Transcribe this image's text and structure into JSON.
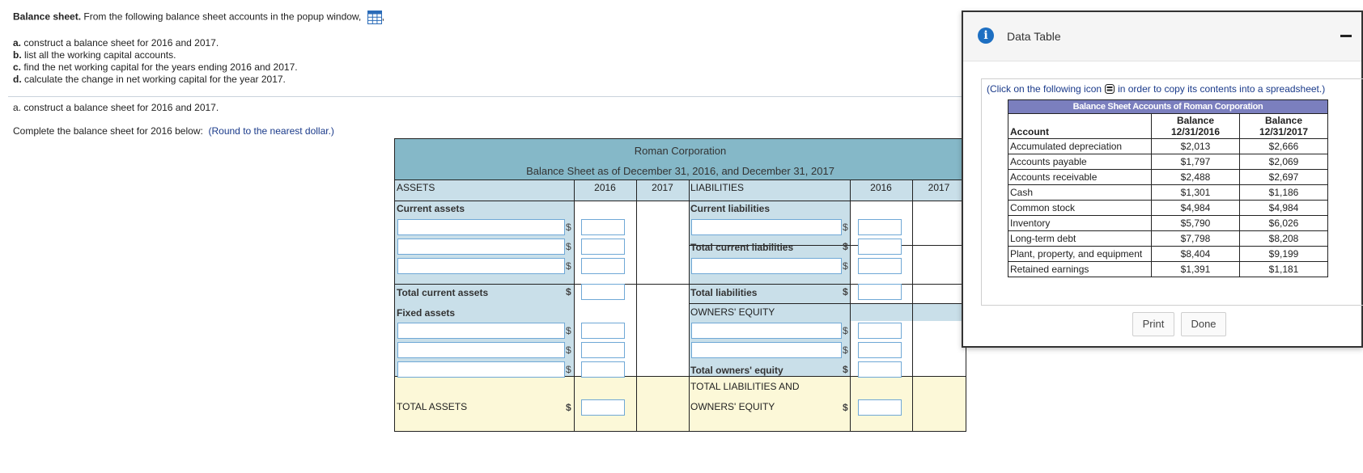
{
  "question": {
    "title_bold": "Balance sheet.",
    "title_rest": " From the following balance sheet accounts in the popup window,",
    "title_comma": ",",
    "parts": [
      {
        "letter": "a.",
        "text": " construct a balance sheet for 2016 and 2017."
      },
      {
        "letter": "b.",
        "text": " list all the working capital accounts."
      },
      {
        "letter": "c.",
        "text": " find the net working capital for the years ending 2016 and 2017."
      },
      {
        "letter": "d.",
        "text": " calculate the change in net working capital for the year 2017."
      }
    ],
    "current_part": "a. construct a balance sheet for 2016 and 2017.",
    "instruction": "Complete the balance sheet for 2016 below:",
    "round_note": "(Round to the nearest dollar.)"
  },
  "sheet": {
    "company": "Roman Corporation",
    "subtitle": "Balance Sheet as of December 31, 2016, and December 31, 2017",
    "assets": "ASSETS",
    "liabilities": "LIABILITIES",
    "y2016": "2016",
    "y2017": "2017",
    "current_assets": "Current assets",
    "current_liabilities": "Current liabilities",
    "total_current_liabilities": "Total current liabilities",
    "total_current_assets": "Total current assets",
    "total_liabilities": "Total liabilities",
    "fixed_assets": "Fixed assets",
    "owners_equity": "OWNERS' EQUITY",
    "total_owners_equity": "Total owners' equity",
    "total_liab_equity_1": "TOTAL LIABILITIES AND",
    "total_liab_equity_2": "OWNERS' EQUITY",
    "total_assets": "TOTAL ASSETS",
    "dollar": "$"
  },
  "popup": {
    "title": "Data Table",
    "copy_note_before": "(Click on the following icon",
    "copy_note_after": "in order to copy its contents into a spreadsheet.)",
    "table_caption": "Balance Sheet Accounts of Roman Corporation",
    "col_account": "Account",
    "col_b2016_1": "Balance",
    "col_b2016_2": "12/31/2016",
    "col_b2017_1": "Balance",
    "col_b2017_2": "12/31/2017",
    "rows": [
      {
        "account": "Accumulated depreciation",
        "v2016": "$2,013",
        "v2017": "$2,666"
      },
      {
        "account": "Accounts payable",
        "v2016": "$1,797",
        "v2017": "$2,069"
      },
      {
        "account": "Accounts receivable",
        "v2016": "$2,488",
        "v2017": "$2,697"
      },
      {
        "account": "Cash",
        "v2016": "$1,301",
        "v2017": "$1,186"
      },
      {
        "account": "Common stock",
        "v2016": "$4,984",
        "v2017": "$4,984"
      },
      {
        "account": "Inventory",
        "v2016": "$5,790",
        "v2017": "$6,026"
      },
      {
        "account": "Long-term debt",
        "v2016": "$7,798",
        "v2017": "$8,208"
      },
      {
        "account": "Plant, property, and equipment",
        "v2016": "$8,404",
        "v2017": "$9,199"
      },
      {
        "account": "Retained earnings",
        "v2016": "$1,391",
        "v2017": "$1,181"
      }
    ],
    "print_label": "Print",
    "done_label": "Done"
  }
}
